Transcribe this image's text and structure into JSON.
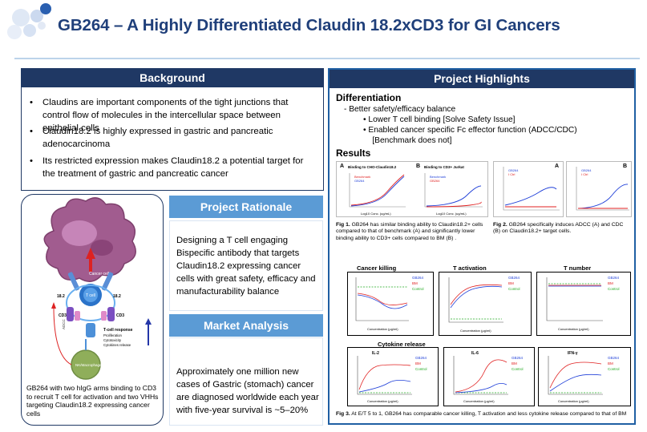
{
  "header": {
    "title": "GB264 – A Highly Differentiated Claudin 18.2xCD3 for GI Cancers"
  },
  "background": {
    "heading": "Background",
    "bullets": [
      "Claudins are important components of the tight junctions that control flow of molecules in the intercellular space between epithelial cells",
      "Claudin18.2 is highly expressed in gastric and pancreatic adenocarcinoma",
      "Its restricted expression makes Claudin18.2 a potential target for the treatment of gastric and pancreatic cancer"
    ]
  },
  "mechanism": {
    "caption": "GB264 with two hIgG arms binding to CD3 to recruit T cell for activation and two VHHs targeting Claudin18.2 expressing cancer cells",
    "labels": {
      "cancer_cell": "Cancer cell",
      "t_cell": "T cell",
      "nk_macrophage": "NK/Macrophage",
      "cd3_left": "CD3",
      "cd3_right": "CD3",
      "c182_left": "18.2",
      "c182_right": "18.2",
      "adcc": "ADCC",
      "tcell_response": "T-cell response",
      "resp1": "Proliferation",
      "resp2": "Cytotoxicity",
      "resp3": "Cytokines release"
    }
  },
  "rationale": {
    "heading": "Project Rationale",
    "text": "Designing a T cell engaging Bispecific antibody that targets Claudin18.2 expressing cancer cells with great safety, efficacy and manufacturability balance"
  },
  "market": {
    "heading": "Market Analysis",
    "text": "Approximately one million new cases of Gastric (stomach) cancer are diagnosed worldwide each year with five-year survival is ~5–20%"
  },
  "highlights": {
    "heading": "Project Highlights",
    "diff_title": "Differentiation",
    "diff_lines": [
      "- Better safety/efficacy balance",
      "•   Lower T cell binding [Solve Safety Issue]",
      "•   Enabled cancer specific Fc effector function (ADCC/CDC)",
      "    [Benchmark does not]"
    ],
    "results_title": "Results",
    "fig1": {
      "panel_a_letter": "A",
      "panel_a_title": "Binding to CHO-Claudin18.2",
      "panel_b_letter": "B",
      "panel_b_title": "Binding to CD3+ Jurkat",
      "legend": [
        "Benchmark",
        "GB264"
      ],
      "xlabel": "Log10 Conc. (ug/mL)",
      "caption_bold": "Fig 1.",
      "caption": " GB264 has similar binding ability to Claudin18.2+ cells compared to that of benchmark (A) and significantly lower binding ability to CD3+ cells compared to BM (B) ."
    },
    "fig2": {
      "panel_a_letter": "A",
      "panel_b_letter": "B",
      "legend": [
        "GB264",
        "I Ctrl"
      ],
      "caption_bold": "Fig 2.",
      "caption": " GB264 specifically induces ADCC (A) and CDC (B) on Claudin18.2+ target cells."
    },
    "fig3": {
      "titles": [
        "Cancer killing",
        "T activation",
        "T number",
        "Cytokine release"
      ],
      "cyto_titles": [
        "IL-2",
        "IL-6",
        "IFN-γ"
      ],
      "legend": [
        "GB264",
        "BM",
        "Control"
      ],
      "xlabel": "Concentration (μg/ml)",
      "caption_bold": "Fig 3.",
      "caption": " At E/T 5 to 1, GB264 has comparable cancer killing, T activation and less cytokine release compared to that of BM"
    }
  },
  "colors": {
    "navy": "#1f3864",
    "light_blue": "#5b9bd5",
    "title_blue": "#1f3f7a",
    "gb264": "#1f3fd8",
    "bm": "#e02020",
    "control": "#22aa22"
  }
}
